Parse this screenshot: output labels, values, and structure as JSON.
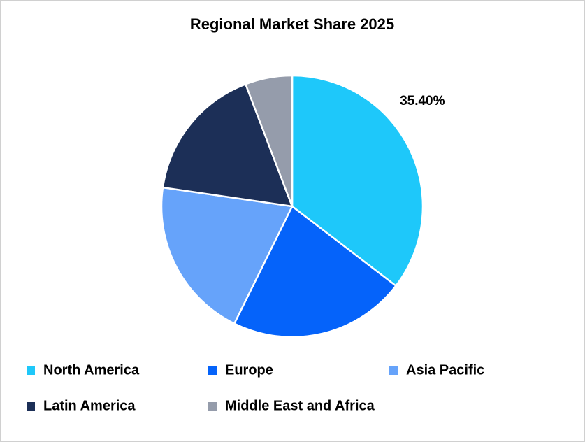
{
  "chart_data": {
    "type": "pie",
    "title": "Regional Market Share 2025",
    "categories": [
      "North America",
      "Europe",
      "Asia Pacific",
      "Latin America",
      "Middle East and Africa"
    ],
    "values": [
      35.4,
      21.9,
      20.0,
      16.9,
      5.8
    ],
    "value_labels": [
      "35.40%",
      null,
      null,
      null,
      null
    ],
    "colors": [
      "#1ec8fa",
      "#0563fa",
      "#66a3fa",
      "#1c2f57",
      "#959cab"
    ],
    "legend": "bottom"
  }
}
